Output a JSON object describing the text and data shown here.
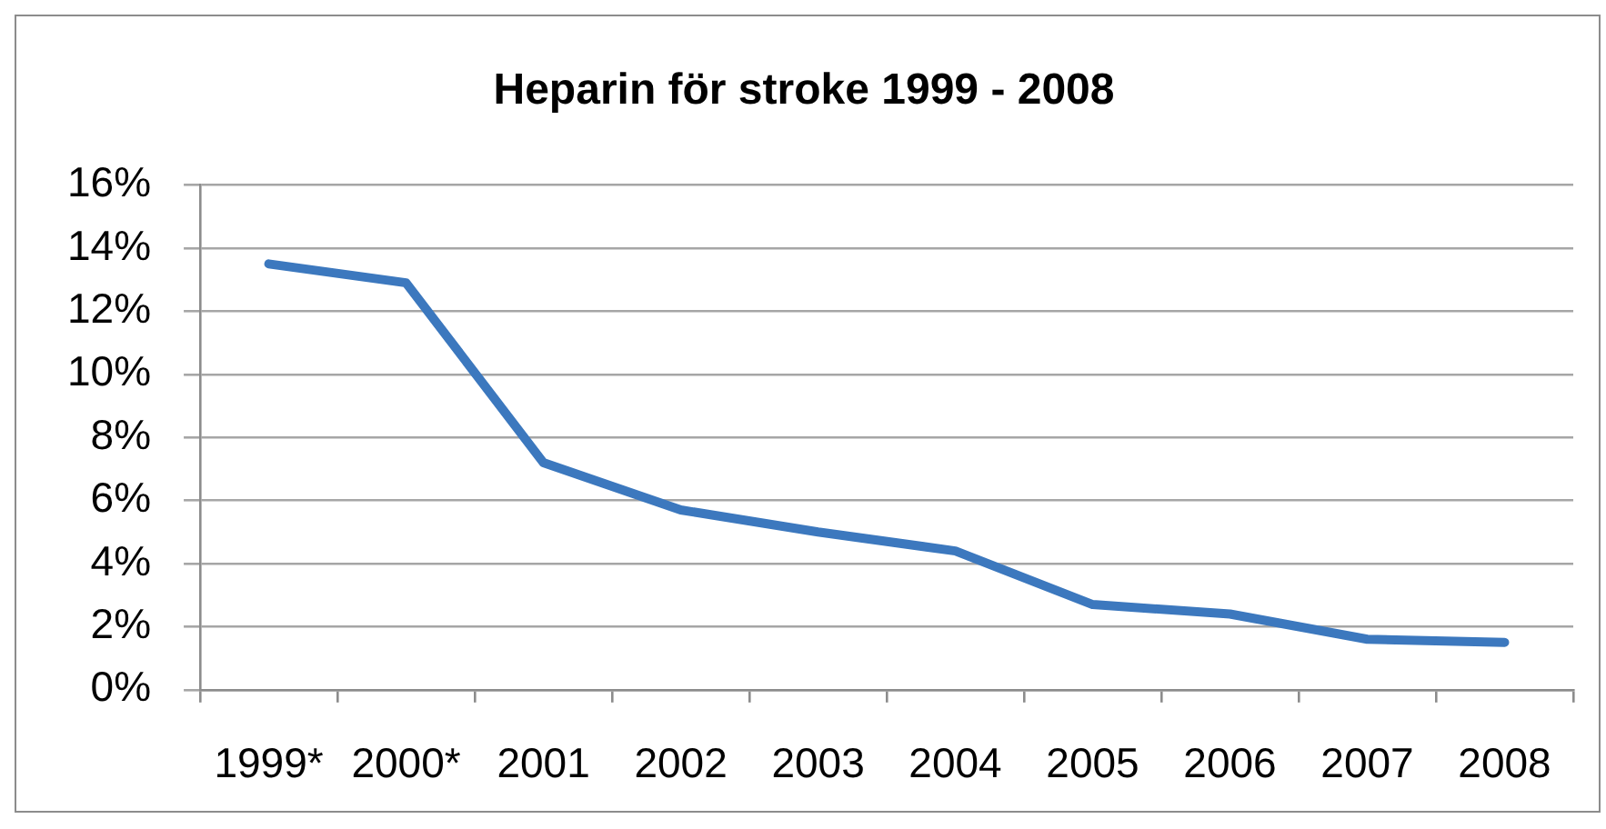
{
  "chart_data": {
    "type": "line",
    "title": "Heparin för stroke 1999 - 2008",
    "categories": [
      "1999*",
      "2000*",
      "2001",
      "2002",
      "2003",
      "2004",
      "2005",
      "2006",
      "2007",
      "2008"
    ],
    "series": [
      {
        "color": "#3c78be",
        "values": [
          13.5,
          12.9,
          7.2,
          5.7,
          5.0,
          4.4,
          2.7,
          2.4,
          1.6,
          1.5
        ]
      }
    ],
    "ylim": [
      0,
      16
    ],
    "yticks": [
      {
        "value": 0,
        "label": "0%"
      },
      {
        "value": 2,
        "label": "2%"
      },
      {
        "value": 4,
        "label": "4%"
      },
      {
        "value": 6,
        "label": "6%"
      },
      {
        "value": 8,
        "label": "8%"
      },
      {
        "value": 10,
        "label": "10%"
      },
      {
        "value": 12,
        "label": "12%"
      },
      {
        "value": 14,
        "label": "14%"
      },
      {
        "value": 16,
        "label": "16%"
      }
    ],
    "grid": "y",
    "marker": "none",
    "line_style": "solid"
  }
}
